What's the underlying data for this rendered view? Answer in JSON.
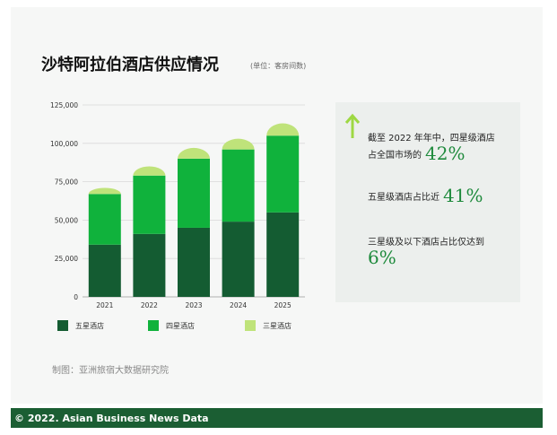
{
  "title": "沙特阿拉伯酒店供应情况",
  "unit_note": "(单位：客房间数)",
  "chart_data": {
    "type": "bar",
    "stacked": true,
    "categories": [
      "2021",
      "2022",
      "2023",
      "2024",
      "2025"
    ],
    "series": [
      {
        "name": "五星酒店",
        "color": "#145c32",
        "values": [
          34000,
          41000,
          45000,
          49000,
          55000
        ]
      },
      {
        "name": "四星酒店",
        "color": "#10b23c",
        "values": [
          33000,
          38000,
          45000,
          47000,
          50000
        ]
      },
      {
        "name": "三星酒店",
        "color": "#bfe37a",
        "values": [
          4000,
          6000,
          7000,
          7000,
          8000
        ]
      }
    ],
    "y_ticks": [
      "0",
      "25,000",
      "50,000",
      "75,000",
      "100,000",
      "125,000"
    ],
    "ylim": [
      0,
      125000
    ],
    "grid": true,
    "legend_position": "bottom"
  },
  "stats": [
    {
      "text": "截至 2022 年年中，四星级酒店",
      "text2": "占全国市场的",
      "value": "42%"
    },
    {
      "text": "五星级酒店占比近",
      "value": "41%"
    },
    {
      "text": "三星级及以下酒店占比仅达到",
      "value": "6%"
    }
  ],
  "arrow_icon_color": "#9ed843",
  "source": "制图：亚洲旅宿大数据研究院",
  "footer": "© 2022. Asian Business News Data"
}
